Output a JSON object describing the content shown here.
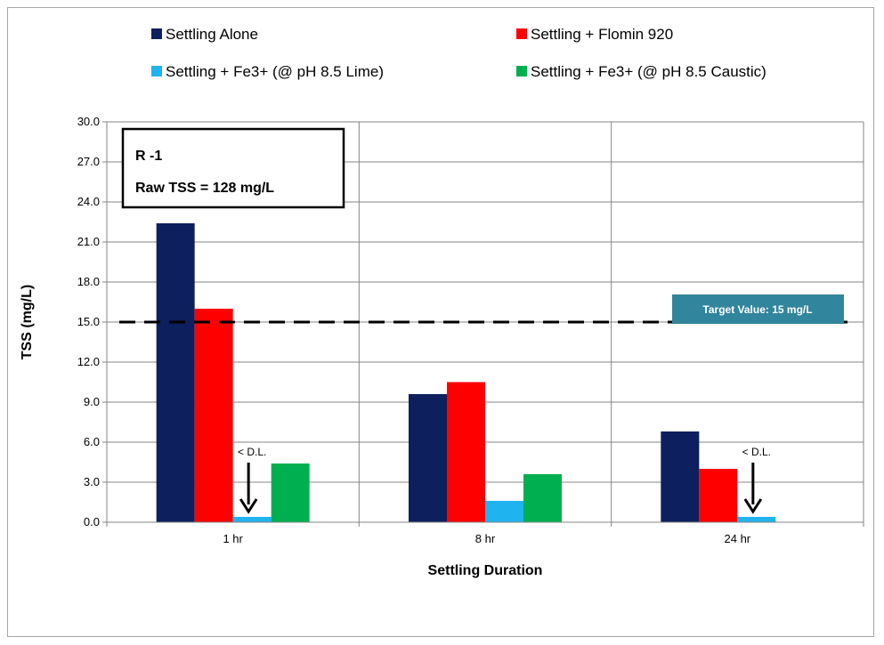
{
  "chart_data": {
    "type": "bar",
    "xlabel": "Settling Duration",
    "ylabel": "TSS (mg/L)",
    "ylim": [
      0,
      30
    ],
    "yticks": [
      "0.0",
      "3.0",
      "6.0",
      "9.0",
      "12.0",
      "15.0",
      "18.0",
      "21.0",
      "24.0",
      "27.0",
      "30.0"
    ],
    "categories": [
      "1 hr",
      "8 hr",
      "24 hr"
    ],
    "series": [
      {
        "name": "Settling Alone",
        "color": "#0d1f5c",
        "values": [
          22.4,
          9.6,
          6.8
        ]
      },
      {
        "name": "Settling + Flomin 920",
        "color": "#ff0000",
        "values": [
          16.0,
          10.5,
          4.0
        ]
      },
      {
        "name": "Settling + Fe3+ (@ pH 8.5 Lime)",
        "color": "#1fb3f0",
        "values": [
          0.4,
          1.6,
          0.4
        ]
      },
      {
        "name": "Settling + Fe3+ (@ pH 8.5 Caustic)",
        "color": "#00b050",
        "values": [
          4.4,
          3.6,
          null
        ]
      }
    ],
    "grid": true,
    "legend": "top",
    "target_line": {
      "value": 15,
      "label": "Target Value:  15 mg/L",
      "color": "#31859c"
    },
    "info_box": {
      "line1": "R -1",
      "line2": "Raw TSS  = 128 mg/L"
    },
    "annotations": [
      {
        "text": "< D.L.",
        "category": "1 hr"
      },
      {
        "text": "<  D.L.",
        "category": "24 hr"
      }
    ]
  }
}
